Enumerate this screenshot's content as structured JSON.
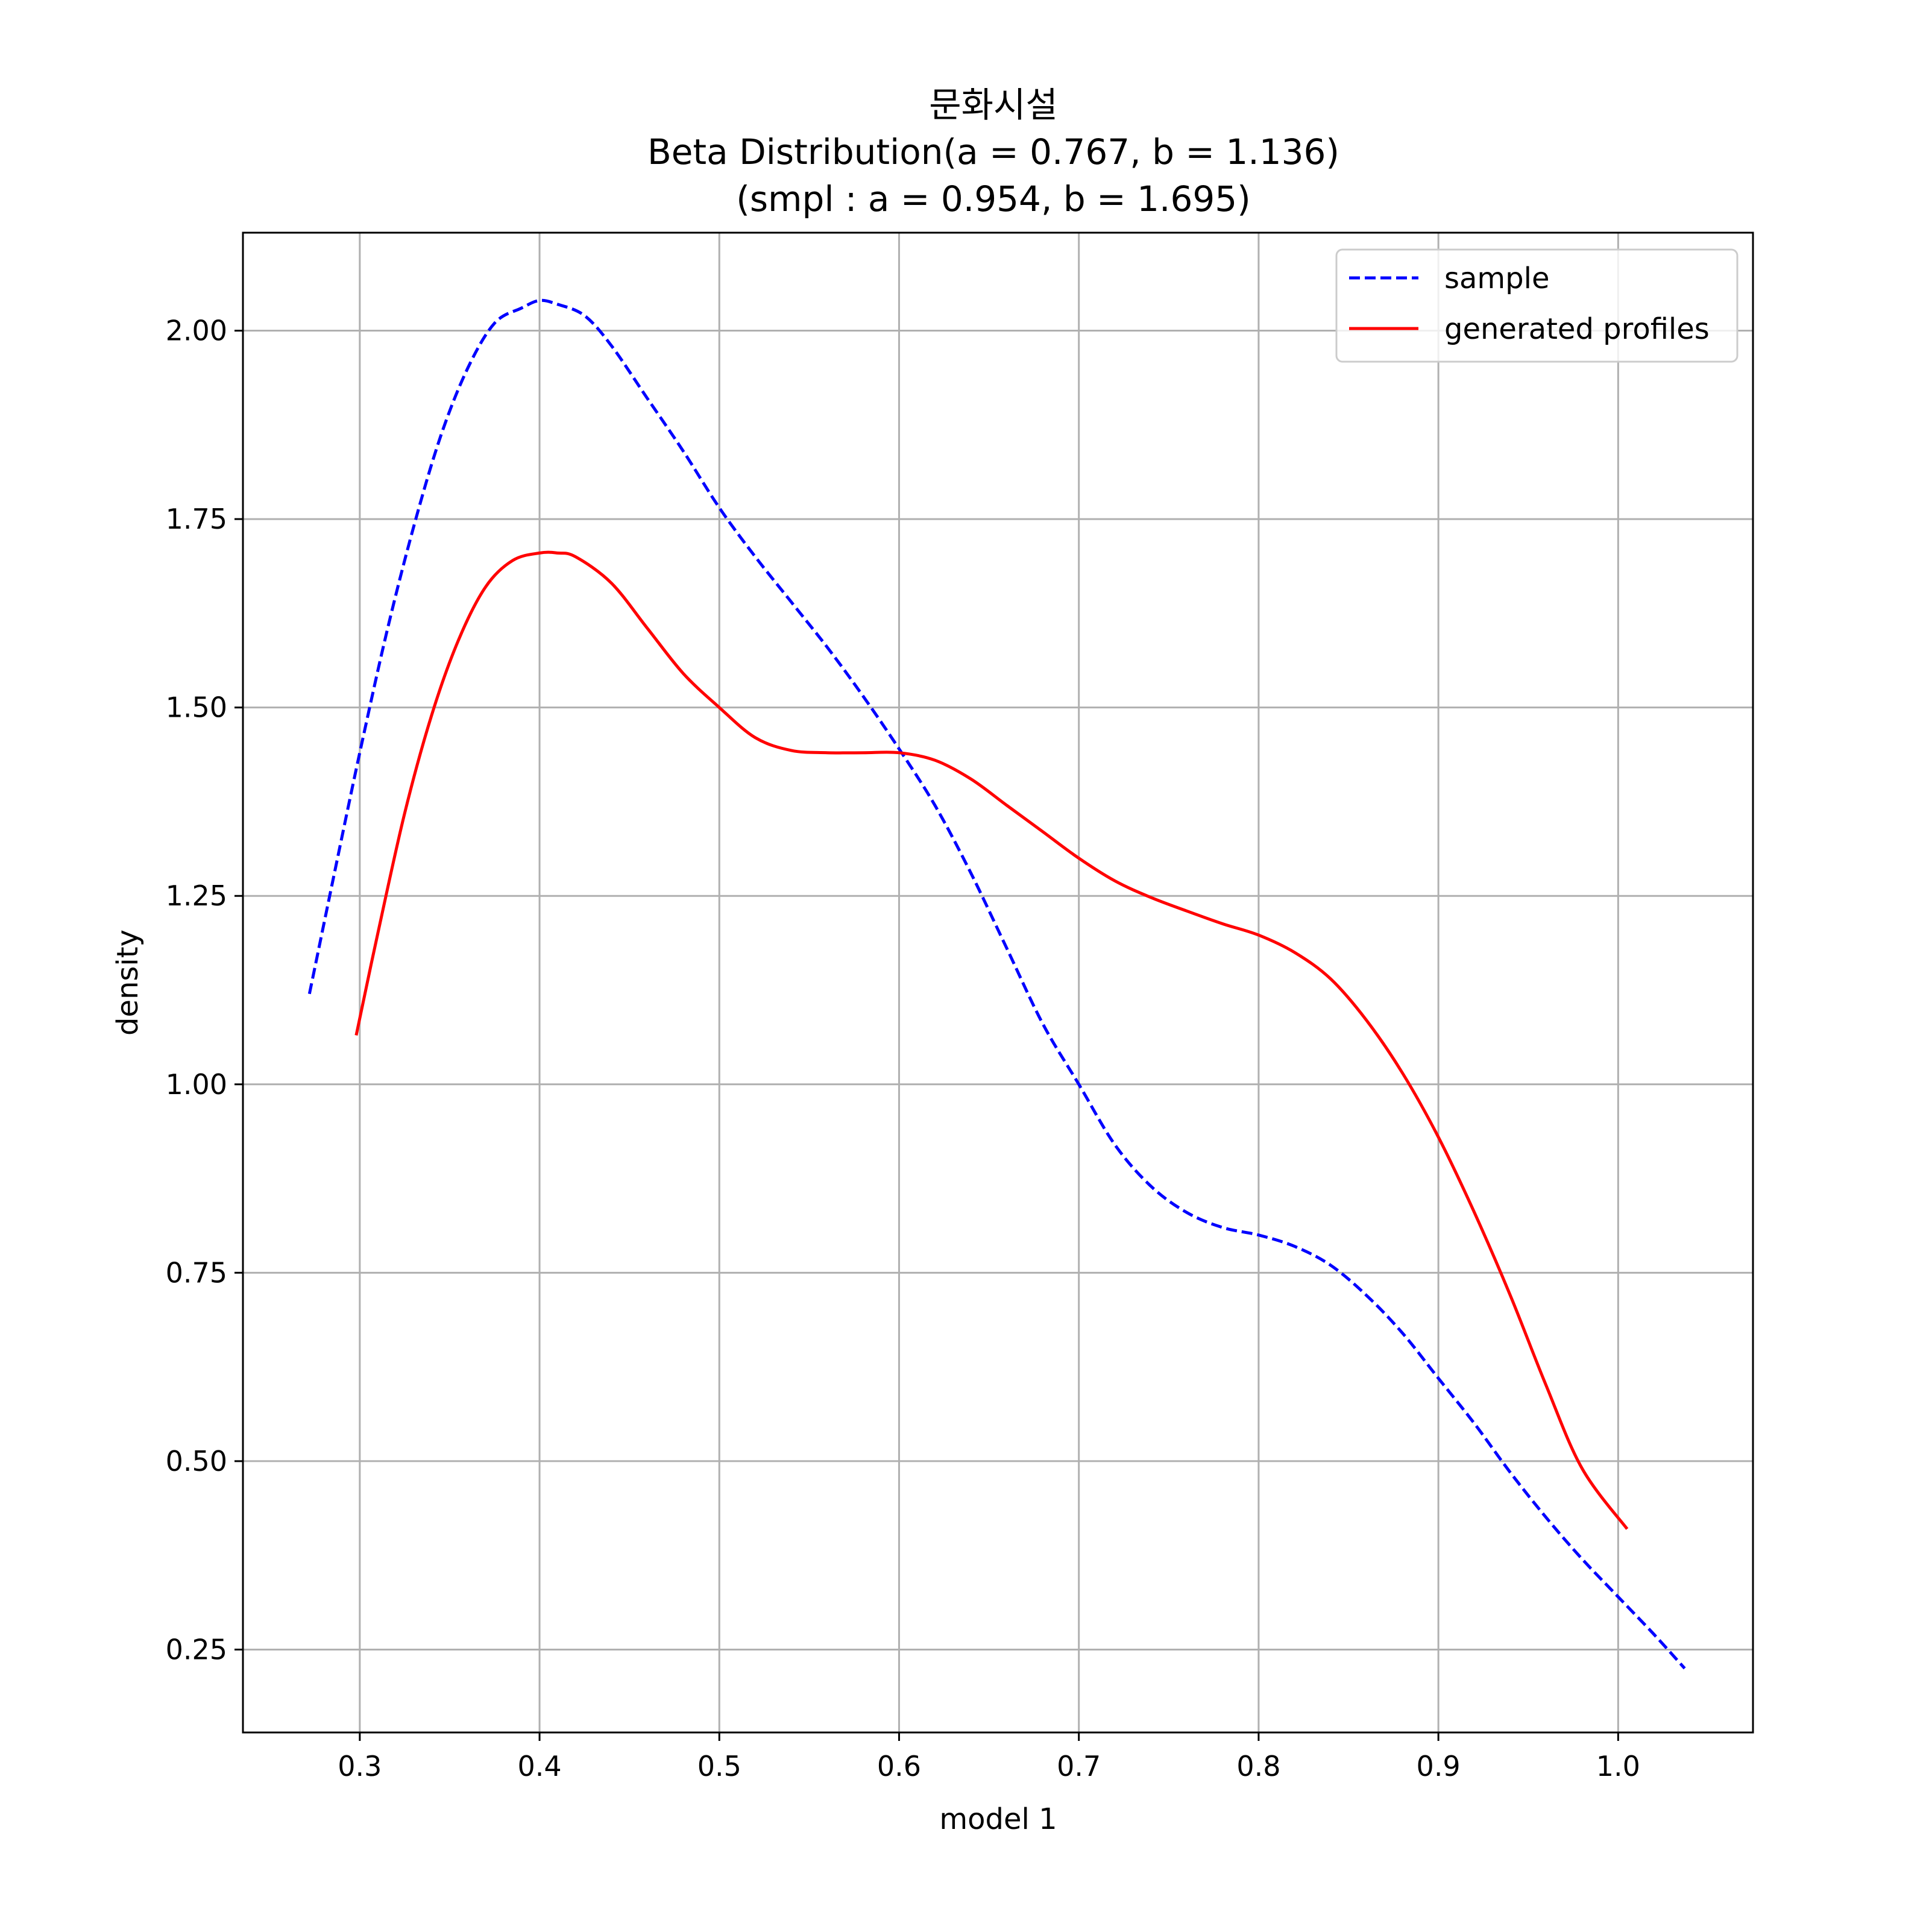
{
  "chart_data": {
    "type": "line",
    "title_lines": [
      "문화시설",
      "Beta Distribution(a = 0.767, b = 1.136)",
      "(smpl : a = 0.954, b = 1.695)"
    ],
    "xlabel": "model 1",
    "ylabel": "density",
    "xlim": [
      0.235,
      1.075
    ],
    "ylim": [
      0.14,
      2.13
    ],
    "xticks": [
      0.3,
      0.4,
      0.5,
      0.6,
      0.7,
      0.8,
      0.9,
      1.0
    ],
    "xtick_labels": [
      "0.3",
      "0.4",
      "0.5",
      "0.6",
      "0.7",
      "0.8",
      "0.9",
      "1.0"
    ],
    "yticks": [
      0.25,
      0.5,
      0.75,
      1.0,
      1.25,
      1.5,
      1.75,
      2.0
    ],
    "ytick_labels": [
      "0.25",
      "0.50",
      "0.75",
      "1.00",
      "1.25",
      "1.50",
      "1.75",
      "2.00"
    ],
    "grid": true,
    "legend_position": "top-right",
    "series": [
      {
        "name": "sample",
        "color": "#0000ff",
        "style": "dashed",
        "x": [
          0.272,
          0.285,
          0.3,
          0.315,
          0.33,
          0.345,
          0.36,
          0.375,
          0.39,
          0.4,
          0.41,
          0.425,
          0.44,
          0.46,
          0.48,
          0.5,
          0.52,
          0.54,
          0.56,
          0.58,
          0.6,
          0.62,
          0.64,
          0.66,
          0.68,
          0.7,
          0.72,
          0.74,
          0.76,
          0.78,
          0.8,
          0.82,
          0.84,
          0.86,
          0.88,
          0.9,
          0.92,
          0.94,
          0.96,
          0.98,
          1.0,
          1.02,
          1.037
        ],
        "y": [
          1.12,
          1.27,
          1.44,
          1.6,
          1.74,
          1.86,
          1.95,
          2.01,
          2.03,
          2.04,
          2.035,
          2.02,
          1.98,
          1.91,
          1.84,
          1.765,
          1.7,
          1.64,
          1.58,
          1.515,
          1.445,
          1.37,
          1.28,
          1.18,
          1.08,
          1.0,
          0.92,
          0.865,
          0.83,
          0.81,
          0.8,
          0.785,
          0.76,
          0.72,
          0.67,
          0.61,
          0.55,
          0.485,
          0.425,
          0.37,
          0.32,
          0.27,
          0.225
        ]
      },
      {
        "name": "generated profiles",
        "color": "#ff0000",
        "style": "solid",
        "x": [
          0.298,
          0.31,
          0.325,
          0.34,
          0.355,
          0.37,
          0.385,
          0.4,
          0.41,
          0.42,
          0.44,
          0.46,
          0.48,
          0.5,
          0.52,
          0.54,
          0.56,
          0.58,
          0.6,
          0.62,
          0.64,
          0.66,
          0.68,
          0.7,
          0.72,
          0.74,
          0.76,
          0.78,
          0.8,
          0.82,
          0.84,
          0.86,
          0.88,
          0.9,
          0.92,
          0.94,
          0.96,
          0.98,
          1.005
        ],
        "y": [
          1.065,
          1.2,
          1.36,
          1.49,
          1.59,
          1.66,
          1.695,
          1.705,
          1.705,
          1.7,
          1.665,
          1.605,
          1.545,
          1.5,
          1.46,
          1.443,
          1.44,
          1.44,
          1.44,
          1.43,
          1.405,
          1.37,
          1.335,
          1.3,
          1.27,
          1.248,
          1.23,
          1.213,
          1.198,
          1.175,
          1.14,
          1.085,
          1.015,
          0.93,
          0.83,
          0.72,
          0.6,
          0.49,
          0.41
        ]
      }
    ]
  }
}
